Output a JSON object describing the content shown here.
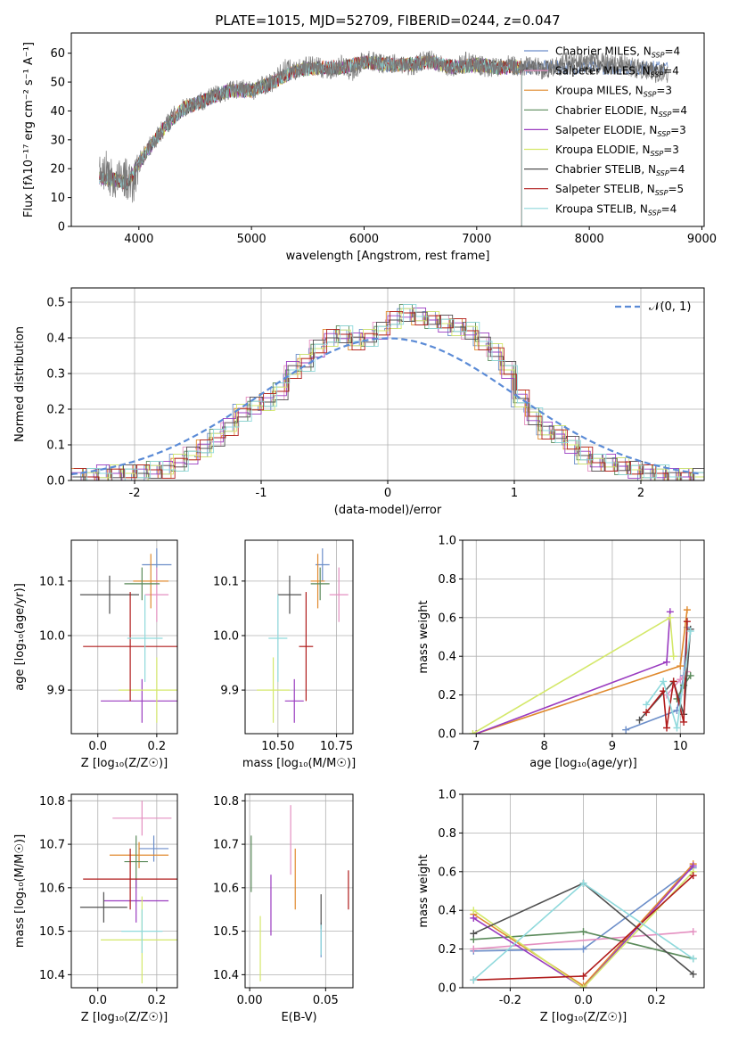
{
  "title": "PLATE=1015, MJD=52709, FIBERID=0244, z=0.047",
  "colors": {
    "chabrier_miles": "#6c8ec9",
    "salpeter_miles": "#e48fc0",
    "kroupa_miles": "#e08a2e",
    "chabrier_elodie": "#5a8a5a",
    "salpeter_elodie": "#9a3cc0",
    "kroupa_elodie": "#d4e86a",
    "chabrier_stelib": "#505050",
    "salpeter_stelib": "#b01c1c",
    "kroupa_stelib": "#8fd9dc",
    "normal_curve": "#5b8bd6"
  },
  "legend": [
    {
      "key": "chabrier_miles",
      "label": "Chabrier MILES, N_SSP=4"
    },
    {
      "key": "salpeter_miles",
      "label": "Salpeter MILES, N_SSP=4"
    },
    {
      "key": "kroupa_miles",
      "label": "Kroupa MILES, N_SSP=3"
    },
    {
      "key": "chabrier_elodie",
      "label": "Chabrier ELODIE, N_SSP=4"
    },
    {
      "key": "salpeter_elodie",
      "label": "Salpeter ELODIE, N_SSP=3"
    },
    {
      "key": "kroupa_elodie",
      "label": "Kroupa ELODIE, N_SSP=3"
    },
    {
      "key": "chabrier_stelib",
      "label": "Chabrier STELIB, N_SSP=4"
    },
    {
      "key": "salpeter_stelib",
      "label": "Salpeter STELIB, N_SSP=5"
    },
    {
      "key": "kroupa_stelib",
      "label": "Kroupa STELIB, N_SSP=4"
    }
  ],
  "chart_data": [
    {
      "id": "spectrum",
      "type": "line",
      "title": "PLATE=1015, MJD=52709, FIBERID=0244, z=0.047",
      "xlabel": "wavelength [Angstrom, rest frame]",
      "ylabel": "Flux [fλ10⁻¹⁷ erg cm⁻² s⁻¹ A⁻¹]",
      "xlim": [
        3400,
        9020
      ],
      "ylim": [
        0,
        67
      ],
      "xticks": [
        4000,
        5000,
        6000,
        7000,
        8000,
        9000
      ],
      "yticks": [
        0,
        10,
        20,
        30,
        40,
        50,
        60
      ],
      "grid": false,
      "legend_position": "top-right",
      "data_series": {
        "name": "data",
        "x": [
          3650,
          3700,
          3750,
          3800,
          3850,
          3900,
          3950,
          4000,
          4100,
          4200,
          4300,
          4400,
          4500,
          4600,
          4700,
          4800,
          4900,
          5000,
          5100,
          5200,
          5300,
          5400,
          5500,
          5600,
          5700,
          5800,
          5900,
          6000,
          6100,
          6200,
          6300,
          6400,
          6500,
          6600,
          6700,
          6800,
          6900,
          7000,
          7100,
          7200,
          7300,
          7400,
          7500,
          7600,
          7700,
          7800,
          7900,
          8000,
          8100,
          8200,
          8300,
          8400,
          8500,
          8600,
          8700
        ],
        "y": [
          18,
          20,
          17,
          15,
          18,
          16,
          14,
          22,
          28,
          33,
          38,
          41,
          43,
          44,
          46,
          47,
          48,
          47,
          49,
          50,
          55,
          54,
          56,
          55,
          54,
          56,
          53,
          58,
          57,
          56,
          57,
          55,
          57,
          58,
          56,
          55,
          57,
          56,
          55,
          55,
          56,
          55,
          56,
          54,
          55,
          57,
          56,
          57,
          57,
          56,
          56,
          55,
          54,
          53,
          52
        ]
      },
      "model_series": {
        "x": [
          3650,
          3800,
          3900,
          4000,
          4200,
          4400,
          4600,
          4800,
          5000,
          5200,
          5400,
          5600,
          5800,
          6000,
          6200,
          6400,
          6600,
          6800,
          7000,
          7200,
          7400
        ],
        "y": [
          17,
          16,
          15,
          22,
          33,
          41,
          44,
          47,
          47,
          50,
          54,
          55,
          55,
          57,
          56,
          56,
          57,
          55,
          56,
          55,
          55
        ],
        "end_wavelength": {
          "chabrier_miles": 8700,
          "salpeter_miles": 7400,
          "kroupa_miles": 7400,
          "chabrier_elodie": 7400,
          "salpeter_elodie": 7400,
          "kroupa_elodie": 7400,
          "chabrier_stelib": 8700,
          "salpeter_stelib": 7400,
          "kroupa_stelib": 7400
        }
      }
    },
    {
      "id": "residuals",
      "type": "bar",
      "xlabel": "(data-model)/error",
      "ylabel": "Normed distribution",
      "xlim": [
        -2.5,
        2.5
      ],
      "ylim": [
        0,
        0.54
      ],
      "xticks": [
        -2,
        -1,
        0,
        1,
        2
      ],
      "yticks": [
        0.0,
        0.1,
        0.2,
        0.3,
        0.4,
        0.5
      ],
      "grid": true,
      "legend_position": "top-right",
      "reference_curve": {
        "name": "𝒩(0, 1)",
        "mean": 0,
        "sigma": 1
      },
      "bin_width": 0.1,
      "bin_start": -2.5,
      "values": [
        0.01,
        0.01,
        0.02,
        0.02,
        0.02,
        0.02,
        0.03,
        0.03,
        0.05,
        0.07,
        0.09,
        0.12,
        0.15,
        0.19,
        0.21,
        0.22,
        0.25,
        0.31,
        0.33,
        0.37,
        0.4,
        0.41,
        0.39,
        0.4,
        0.42,
        0.45,
        0.47,
        0.46,
        0.45,
        0.44,
        0.43,
        0.42,
        0.39,
        0.36,
        0.31,
        0.23,
        0.18,
        0.14,
        0.13,
        0.1,
        0.07,
        0.05,
        0.05,
        0.04,
        0.03,
        0.02,
        0.02,
        0.01,
        0.01,
        0.01
      ]
    },
    {
      "id": "age_vs_Z",
      "type": "scatter",
      "xlabel": "Z [log₁₀(Z/Z☉)]",
      "ylabel": "age  [log₁₀(age/yr)]",
      "xlim": [
        -0.09,
        0.27
      ],
      "ylim": [
        9.82,
        10.175
      ],
      "xticks": [
        0.0,
        0.2
      ],
      "yticks": [
        9.9,
        10.0,
        10.1
      ],
      "grid": true,
      "points": [
        {
          "key": "chabrier_miles",
          "x": 0.2,
          "xerr": 0.05,
          "y": 10.13,
          "yerr": 0.03
        },
        {
          "key": "salpeter_miles",
          "x": 0.2,
          "xerr": 0.04,
          "y": 10.075,
          "yerr": 0.05
        },
        {
          "key": "kroupa_miles",
          "x": 0.18,
          "xerr": 0.06,
          "y": 10.1,
          "yerr": 0.05
        },
        {
          "key": "chabrier_elodie",
          "x": 0.15,
          "xerr": 0.06,
          "y": 10.095,
          "yerr": 0.03
        },
        {
          "key": "salpeter_elodie",
          "x": 0.15,
          "xerr": 0.14,
          "y": 9.88,
          "yerr": 0.04
        },
        {
          "key": "kroupa_elodie",
          "x": 0.2,
          "xerr": 0.13,
          "y": 9.9,
          "yerr": 0.06
        },
        {
          "key": "chabrier_stelib",
          "x": 0.04,
          "xerr": 0.1,
          "y": 10.075,
          "yerr": 0.035
        },
        {
          "key": "salpeter_stelib",
          "x": 0.11,
          "xerr": 0.16,
          "y": 9.98,
          "yerr": 0.1
        },
        {
          "key": "kroupa_stelib",
          "x": 0.16,
          "xerr": 0.06,
          "y": 9.995,
          "yerr": 0.08
        }
      ]
    },
    {
      "id": "age_vs_mass",
      "type": "scatter",
      "xlabel": "mass [log₁₀(M/M☉)]",
      "ylabel": "",
      "xlim": [
        10.36,
        10.82
      ],
      "ylim": [
        9.82,
        10.175
      ],
      "xticks": [
        10.5,
        10.75
      ],
      "yticks": [
        9.9,
        10.0,
        10.1
      ],
      "grid": true,
      "points": [
        {
          "key": "chabrier_miles",
          "x": 10.69,
          "xerr": 0.03,
          "y": 10.13,
          "yerr": 0.03
        },
        {
          "key": "salpeter_miles",
          "x": 10.76,
          "xerr": 0.04,
          "y": 10.075,
          "yerr": 0.05
        },
        {
          "key": "kroupa_miles",
          "x": 10.67,
          "xerr": 0.03,
          "y": 10.1,
          "yerr": 0.05
        },
        {
          "key": "chabrier_elodie",
          "x": 10.68,
          "xerr": 0.04,
          "y": 10.095,
          "yerr": 0.03
        },
        {
          "key": "salpeter_elodie",
          "x": 10.57,
          "xerr": 0.04,
          "y": 9.88,
          "yerr": 0.04
        },
        {
          "key": "kroupa_elodie",
          "x": 10.48,
          "xerr": 0.07,
          "y": 9.9,
          "yerr": 0.06
        },
        {
          "key": "chabrier_stelib",
          "x": 10.55,
          "xerr": 0.05,
          "y": 10.075,
          "yerr": 0.035
        },
        {
          "key": "salpeter_stelib",
          "x": 10.62,
          "xerr": 0.03,
          "y": 9.98,
          "yerr": 0.1
        },
        {
          "key": "kroupa_stelib",
          "x": 10.5,
          "xerr": 0.04,
          "y": 9.995,
          "yerr": 0.08
        }
      ]
    },
    {
      "id": "massweight_vs_age",
      "type": "line",
      "xlabel": "age  [log₁₀(age/yr)]",
      "ylabel": "mass weight",
      "xlim": [
        6.8,
        10.35
      ],
      "ylim": [
        0,
        1.0
      ],
      "xticks": [
        7,
        8,
        9,
        10
      ],
      "yticks": [
        0.0,
        0.2,
        0.4,
        0.6,
        0.8,
        1.0
      ],
      "grid": true,
      "series": [
        {
          "key": "chabrier_miles",
          "x": [
            9.2,
            9.95,
            10.05,
            10.1
          ],
          "y": [
            0.02,
            0.12,
            0.3,
            0.55
          ]
        },
        {
          "key": "salpeter_miles",
          "x": [
            9.8,
            10.0,
            10.1
          ],
          "y": [
            0.2,
            0.28,
            0.32
          ]
        },
        {
          "key": "kroupa_miles",
          "x": [
            7.0,
            10.0,
            10.1
          ],
          "y": [
            0.0,
            0.35,
            0.64
          ]
        },
        {
          "key": "chabrier_elodie",
          "x": [
            9.95,
            10.05,
            10.15
          ],
          "y": [
            0.18,
            0.25,
            0.3
          ]
        },
        {
          "key": "salpeter_elodie",
          "x": [
            7.0,
            9.8,
            9.85
          ],
          "y": [
            0.0,
            0.37,
            0.63
          ]
        },
        {
          "key": "kroupa_elodie",
          "x": [
            6.95,
            9.85,
            9.9
          ],
          "y": [
            0.0,
            0.6,
            0.4
          ]
        },
        {
          "key": "chabrier_stelib",
          "x": [
            9.4,
            9.9,
            10.05,
            10.15
          ],
          "y": [
            0.07,
            0.27,
            0.1,
            0.54
          ]
        },
        {
          "key": "salpeter_stelib",
          "x": [
            9.5,
            9.75,
            9.8,
            9.9,
            10.05,
            10.1
          ],
          "y": [
            0.11,
            0.22,
            0.03,
            0.27,
            0.06,
            0.58
          ]
        },
        {
          "key": "kroupa_stelib",
          "x": [
            9.5,
            9.75,
            9.95,
            10.15
          ],
          "y": [
            0.15,
            0.27,
            0.03,
            0.53
          ]
        }
      ]
    },
    {
      "id": "mass_vs_Z",
      "type": "scatter",
      "xlabel": "Z [log₁₀(Z/Z☉)]",
      "ylabel": "mass [log₁₀(M/M☉)]",
      "xlim": [
        -0.09,
        0.27
      ],
      "ylim": [
        10.37,
        10.815
      ],
      "xticks": [
        0.0,
        0.2
      ],
      "yticks": [
        10.4,
        10.5,
        10.6,
        10.7,
        10.8
      ],
      "grid": true,
      "points": [
        {
          "key": "chabrier_miles",
          "x": 0.19,
          "xerr": 0.05,
          "y": 10.69,
          "yerr": 0.03
        },
        {
          "key": "salpeter_miles",
          "x": 0.15,
          "xerr": 0.1,
          "y": 10.76,
          "yerr": 0.04
        },
        {
          "key": "kroupa_miles",
          "x": 0.14,
          "xerr": 0.1,
          "y": 10.675,
          "yerr": 0.03
        },
        {
          "key": "chabrier_elodie",
          "x": 0.13,
          "xerr": 0.04,
          "y": 10.66,
          "yerr": 0.06
        },
        {
          "key": "salpeter_elodie",
          "x": 0.13,
          "xerr": 0.11,
          "y": 10.57,
          "yerr": 0.05
        },
        {
          "key": "kroupa_elodie",
          "x": 0.15,
          "xerr": 0.14,
          "y": 10.48,
          "yerr": 0.1
        },
        {
          "key": "chabrier_stelib",
          "x": 0.02,
          "xerr": 0.08,
          "y": 10.555,
          "yerr": 0.035
        },
        {
          "key": "salpeter_stelib",
          "x": 0.11,
          "xerr": 0.16,
          "y": 10.62,
          "yerr": 0.07
        },
        {
          "key": "kroupa_stelib",
          "x": 0.15,
          "xerr": 0.07,
          "y": 10.5,
          "yerr": 0.05
        }
      ]
    },
    {
      "id": "mass_vs_ebv",
      "type": "scatter",
      "xlabel": "E(B-V)",
      "ylabel": "",
      "xlim": [
        -0.003,
        0.068
      ],
      "ylim": [
        10.37,
        10.815
      ],
      "xticks": [
        0.0,
        0.05
      ],
      "yticks": [
        10.4,
        10.5,
        10.6,
        10.7,
        10.8
      ],
      "grid": true,
      "points": [
        {
          "key": "chabrier_miles",
          "x": 0.047,
          "xerr": 0.0,
          "y": 10.48,
          "yerr": 0.04
        },
        {
          "key": "salpeter_miles",
          "x": 0.027,
          "xerr": 0.0,
          "y": 10.71,
          "yerr": 0.08
        },
        {
          "key": "kroupa_miles",
          "x": 0.03,
          "xerr": 0.0,
          "y": 10.62,
          "yerr": 0.07
        },
        {
          "key": "chabrier_elodie",
          "x": 0.001,
          "xerr": 0.0,
          "y": 10.655,
          "yerr": 0.065
        },
        {
          "key": "salpeter_elodie",
          "x": 0.014,
          "xerr": 0.0,
          "y": 10.56,
          "yerr": 0.07
        },
        {
          "key": "kroupa_elodie",
          "x": 0.007,
          "xerr": 0.0,
          "y": 10.46,
          "yerr": 0.075
        },
        {
          "key": "chabrier_stelib",
          "x": 0.047,
          "xerr": 0.0,
          "y": 10.545,
          "yerr": 0.04
        },
        {
          "key": "salpeter_stelib",
          "x": 0.065,
          "xerr": 0.0,
          "y": 10.595,
          "yerr": 0.045
        },
        {
          "key": "kroupa_stelib",
          "x": 0.047,
          "xerr": 0.0,
          "y": 10.48,
          "yerr": 0.035
        }
      ]
    },
    {
      "id": "massweight_vs_Z",
      "type": "line",
      "xlabel": "Z [log₁₀(Z/Z☉)]",
      "ylabel": "mass weight",
      "xlim": [
        -0.33,
        0.33
      ],
      "ylim": [
        0,
        1.0
      ],
      "xticks": [
        -0.2,
        0.0,
        0.2
      ],
      "yticks": [
        0.0,
        0.2,
        0.4,
        0.6,
        0.8,
        1.0
      ],
      "grid": true,
      "series": [
        {
          "key": "chabrier_miles",
          "x": [
            -0.3,
            0.0,
            0.3
          ],
          "y": [
            0.19,
            0.2,
            0.62
          ]
        },
        {
          "key": "salpeter_miles",
          "x": [
            -0.3,
            0.3
          ],
          "y": [
            0.2,
            0.29
          ]
        },
        {
          "key": "kroupa_miles",
          "x": [
            -0.3,
            0.0,
            0.3
          ],
          "y": [
            0.38,
            0.01,
            0.64
          ]
        },
        {
          "key": "chabrier_elodie",
          "x": [
            -0.3,
            0.0,
            0.3
          ],
          "y": [
            0.25,
            0.29,
            0.15
          ]
        },
        {
          "key": "salpeter_elodie",
          "x": [
            -0.3,
            0.0,
            0.3
          ],
          "y": [
            0.36,
            0.0,
            0.63
          ]
        },
        {
          "key": "kroupa_elodie",
          "x": [
            -0.3,
            0.0,
            0.3
          ],
          "y": [
            0.4,
            0.0,
            0.6
          ]
        },
        {
          "key": "chabrier_stelib",
          "x": [
            -0.3,
            0.0,
            0.3
          ],
          "y": [
            0.28,
            0.54,
            0.07
          ]
        },
        {
          "key": "salpeter_stelib",
          "x": [
            -0.3,
            0.0,
            0.3
          ],
          "y": [
            0.04,
            0.06,
            0.58
          ]
        },
        {
          "key": "kroupa_stelib",
          "x": [
            -0.3,
            0.0,
            0.3
          ],
          "y": [
            0.04,
            0.54,
            0.15
          ]
        }
      ]
    }
  ]
}
